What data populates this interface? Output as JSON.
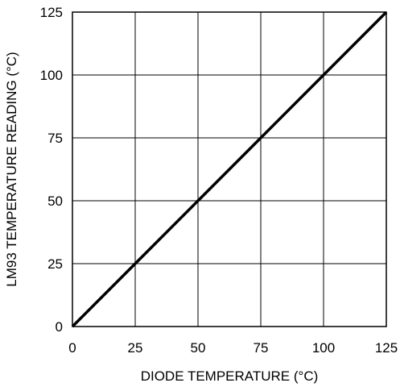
{
  "chart_data": {
    "type": "line",
    "title": "",
    "xlabel": "DIODE TEMPERATURE (°C)",
    "ylabel": "LM93 TEMPERATURE READING (°C)",
    "xlim": [
      0,
      125
    ],
    "ylim": [
      0,
      125
    ],
    "xticks": [
      0,
      25,
      50,
      75,
      100,
      125
    ],
    "yticks": [
      0,
      25,
      50,
      75,
      100,
      125
    ],
    "grid": true,
    "series": [
      {
        "x": [
          0,
          125
        ],
        "y": [
          0,
          125
        ]
      }
    ]
  }
}
